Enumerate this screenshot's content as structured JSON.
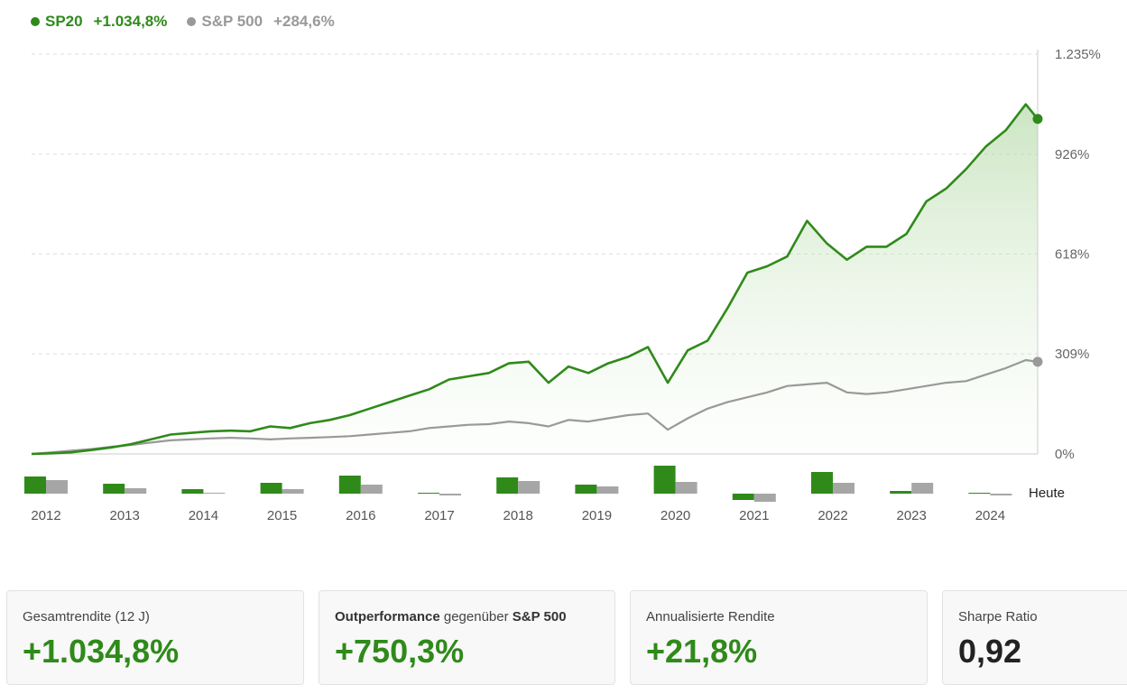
{
  "legend": {
    "primary": {
      "name": "SP20",
      "value": "+1.034,8%",
      "color": "#2f8a1a"
    },
    "benchmark": {
      "name": "S&P 500",
      "value": "+284,6%",
      "color": "#999999"
    }
  },
  "chart_data": {
    "type": "line",
    "y_axis": {
      "ticks": [
        "1.235%",
        "926%",
        "618%",
        "309%",
        "0%"
      ],
      "tick_values": [
        1235,
        926,
        618,
        309,
        0
      ],
      "ylim": [
        0,
        1235
      ]
    },
    "x_axis": {
      "ticks": [
        "2012",
        "2013",
        "2014",
        "2015",
        "2016",
        "2017",
        "2018",
        "2019",
        "2020",
        "2021",
        "2022",
        "2023",
        "2024"
      ],
      "end_label": "Heute"
    },
    "grid": true,
    "series": [
      {
        "name": "SP20",
        "color": "#2f8a1a",
        "area_fill": true,
        "x": [
          2012.0,
          2012.25,
          2012.5,
          2012.75,
          2013.0,
          2013.25,
          2013.5,
          2013.75,
          2014.0,
          2014.25,
          2014.5,
          2014.75,
          2015.0,
          2015.25,
          2015.5,
          2015.75,
          2016.0,
          2016.25,
          2016.5,
          2016.75,
          2017.0,
          2017.25,
          2017.5,
          2017.75,
          2018.0,
          2018.25,
          2018.5,
          2018.75,
          2019.0,
          2019.25,
          2019.5,
          2019.75,
          2020.0,
          2020.25,
          2020.5,
          2020.75,
          2021.0,
          2021.25,
          2021.5,
          2021.75,
          2022.0,
          2022.25,
          2022.5,
          2022.75,
          2023.0,
          2023.25,
          2023.5,
          2023.75,
          2024.0,
          2024.25,
          2024.5,
          2024.65
        ],
        "values": [
          0,
          2,
          5,
          12,
          20,
          30,
          45,
          60,
          65,
          70,
          72,
          70,
          85,
          80,
          95,
          105,
          120,
          140,
          160,
          180,
          200,
          230,
          240,
          250,
          280,
          285,
          220,
          270,
          250,
          280,
          300,
          330,
          220,
          320,
          350,
          450,
          560,
          580,
          610,
          720,
          650,
          600,
          640,
          640,
          680,
          780,
          820,
          880,
          950,
          1000,
          1080,
          1035
        ]
      },
      {
        "name": "S&P 500",
        "color": "#999999",
        "area_fill": false,
        "x": [
          2012.0,
          2012.25,
          2012.5,
          2012.75,
          2013.0,
          2013.25,
          2013.5,
          2013.75,
          2014.0,
          2014.25,
          2014.5,
          2014.75,
          2015.0,
          2015.25,
          2015.5,
          2015.75,
          2016.0,
          2016.25,
          2016.5,
          2016.75,
          2017.0,
          2017.25,
          2017.5,
          2017.75,
          2018.0,
          2018.25,
          2018.5,
          2018.75,
          2019.0,
          2019.25,
          2019.5,
          2019.75,
          2020.0,
          2020.25,
          2020.5,
          2020.75,
          2021.0,
          2021.25,
          2021.5,
          2021.75,
          2022.0,
          2022.25,
          2022.5,
          2022.75,
          2023.0,
          2023.25,
          2023.5,
          2023.75,
          2024.0,
          2024.25,
          2024.5,
          2024.65
        ],
        "values": [
          0,
          5,
          10,
          15,
          22,
          28,
          35,
          42,
          45,
          48,
          50,
          48,
          45,
          48,
          50,
          52,
          55,
          60,
          65,
          70,
          80,
          85,
          90,
          92,
          100,
          95,
          85,
          105,
          100,
          110,
          120,
          125,
          75,
          110,
          140,
          160,
          175,
          190,
          210,
          215,
          220,
          190,
          185,
          190,
          200,
          210,
          220,
          225,
          245,
          265,
          290,
          284.6
        ]
      }
    ],
    "yearly_bars": [
      {
        "year": "2012",
        "SP20": 19,
        "S&P 500": 15
      },
      {
        "year": "2013",
        "SP20": 11,
        "S&P 500": 6
      },
      {
        "year": "2014",
        "SP20": 5,
        "S&P 500": 1
      },
      {
        "year": "2015",
        "SP20": 12,
        "S&P 500": 5
      },
      {
        "year": "2016",
        "SP20": 20,
        "S&P 500": 10
      },
      {
        "year": "2017",
        "SP20": 1,
        "S&P 500": -2
      },
      {
        "year": "2018",
        "SP20": 18,
        "S&P 500": 14
      },
      {
        "year": "2019",
        "SP20": 10,
        "S&P 500": 8
      },
      {
        "year": "2020",
        "SP20": 31,
        "S&P 500": 13
      },
      {
        "year": "2021",
        "SP20": -7,
        "S&P 500": -9
      },
      {
        "year": "2022",
        "SP20": 24,
        "S&P 500": 12
      },
      {
        "year": "2023",
        "SP20": 3,
        "S&P 500": 12
      },
      {
        "year": "2024",
        "SP20": 1,
        "S&P 500": -2
      }
    ]
  },
  "cards": [
    {
      "label": "Gesamtrendite (12 J)",
      "value": "+1.034,8%"
    },
    {
      "label_bold": "Outperformance",
      "label_mid": " gegenüber ",
      "label_bold2": "S&P 500",
      "value": "+750,3%"
    },
    {
      "label": "Annualisierte Rendite",
      "value": "+21,8%"
    },
    {
      "label": "Sharpe Ratio",
      "value": "0,92"
    }
  ]
}
